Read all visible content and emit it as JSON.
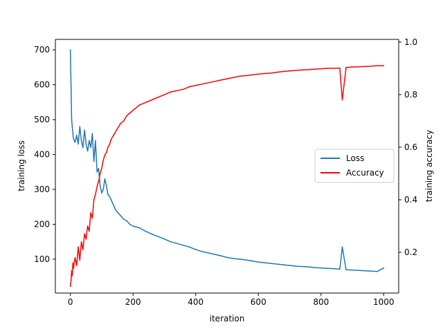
{
  "chart_data": {
    "type": "line",
    "title": "",
    "xlabel": "iteration",
    "ylabel_left": "training loss",
    "ylabel_right": "training accuracy",
    "xlim": [
      -48,
      1048
    ],
    "ylim_left": [
      3,
      730
    ],
    "ylim_right": [
      0.045,
      1.01
    ],
    "x_ticks": [
      0,
      200,
      400,
      600,
      800,
      1000
    ],
    "x_tick_labels": [
      "0",
      "200",
      "400",
      "600",
      "800",
      "1000"
    ],
    "y_left_ticks": [
      100,
      200,
      300,
      400,
      500,
      600,
      700
    ],
    "y_left_tick_labels": [
      "100",
      "200",
      "300",
      "400",
      "500",
      "600",
      "700"
    ],
    "y_right_ticks": [
      0.2,
      0.4,
      0.6,
      0.8,
      1.0
    ],
    "y_right_tick_labels": [
      "0.2",
      "0.4",
      "0.6",
      "0.8",
      "1.0"
    ],
    "grid": false,
    "legend_position": "center-right",
    "series": [
      {
        "name": "Loss",
        "axis": "left",
        "color": "#1f77b4",
        "x": [
          0,
          2,
          4,
          6,
          8,
          10,
          15,
          20,
          25,
          30,
          35,
          40,
          45,
          50,
          55,
          60,
          65,
          70,
          75,
          80,
          85,
          90,
          95,
          100,
          105,
          110,
          115,
          120,
          125,
          130,
          135,
          140,
          145,
          150,
          160,
          170,
          180,
          190,
          200,
          220,
          240,
          260,
          280,
          300,
          320,
          340,
          360,
          380,
          400,
          420,
          440,
          460,
          480,
          500,
          520,
          540,
          560,
          580,
          600,
          620,
          640,
          660,
          680,
          700,
          720,
          740,
          760,
          780,
          800,
          820,
          840,
          860,
          868,
          880,
          900,
          920,
          940,
          960,
          980,
          1000
        ],
        "y": [
          700,
          600,
          500,
          480,
          460,
          445,
          435,
          455,
          430,
          480,
          440,
          420,
          470,
          430,
          410,
          440,
          420,
          460,
          380,
          440,
          350,
          360,
          310,
          290,
          300,
          330,
          310,
          285,
          280,
          270,
          260,
          250,
          240,
          235,
          225,
          215,
          210,
          200,
          195,
          190,
          180,
          172,
          165,
          158,
          150,
          145,
          140,
          135,
          128,
          122,
          118,
          114,
          110,
          105,
          102,
          100,
          98,
          95,
          92,
          90,
          88,
          86,
          84,
          82,
          80,
          79,
          78,
          76,
          75,
          74,
          73,
          72,
          135,
          70,
          69,
          68,
          67,
          66,
          65,
          75
        ]
      },
      {
        "name": "Accuracy",
        "axis": "right",
        "color": "#ff0000",
        "x": [
          0,
          2,
          4,
          6,
          8,
          10,
          15,
          20,
          25,
          30,
          35,
          40,
          45,
          50,
          55,
          60,
          65,
          70,
          75,
          80,
          85,
          90,
          95,
          100,
          105,
          110,
          115,
          120,
          125,
          130,
          140,
          150,
          160,
          170,
          180,
          190,
          200,
          220,
          240,
          260,
          280,
          300,
          320,
          340,
          360,
          380,
          400,
          420,
          440,
          460,
          480,
          500,
          520,
          540,
          560,
          580,
          600,
          620,
          640,
          660,
          680,
          700,
          720,
          740,
          760,
          780,
          800,
          820,
          840,
          860,
          868,
          880,
          900,
          920,
          940,
          960,
          980,
          1000
        ],
        "y": [
          0.07,
          0.09,
          0.13,
          0.11,
          0.16,
          0.14,
          0.18,
          0.15,
          0.22,
          0.17,
          0.24,
          0.21,
          0.27,
          0.25,
          0.3,
          0.28,
          0.35,
          0.33,
          0.4,
          0.42,
          0.45,
          0.47,
          0.5,
          0.52,
          0.55,
          0.57,
          0.58,
          0.6,
          0.61,
          0.63,
          0.65,
          0.67,
          0.69,
          0.7,
          0.72,
          0.73,
          0.74,
          0.76,
          0.77,
          0.78,
          0.79,
          0.8,
          0.81,
          0.815,
          0.82,
          0.83,
          0.835,
          0.84,
          0.845,
          0.85,
          0.855,
          0.86,
          0.865,
          0.87,
          0.872,
          0.875,
          0.878,
          0.88,
          0.882,
          0.885,
          0.888,
          0.89,
          0.892,
          0.894,
          0.895,
          0.897,
          0.898,
          0.9,
          0.9,
          0.901,
          0.78,
          0.903,
          0.905,
          0.906,
          0.907,
          0.908,
          0.91,
          0.91
        ]
      }
    ]
  }
}
